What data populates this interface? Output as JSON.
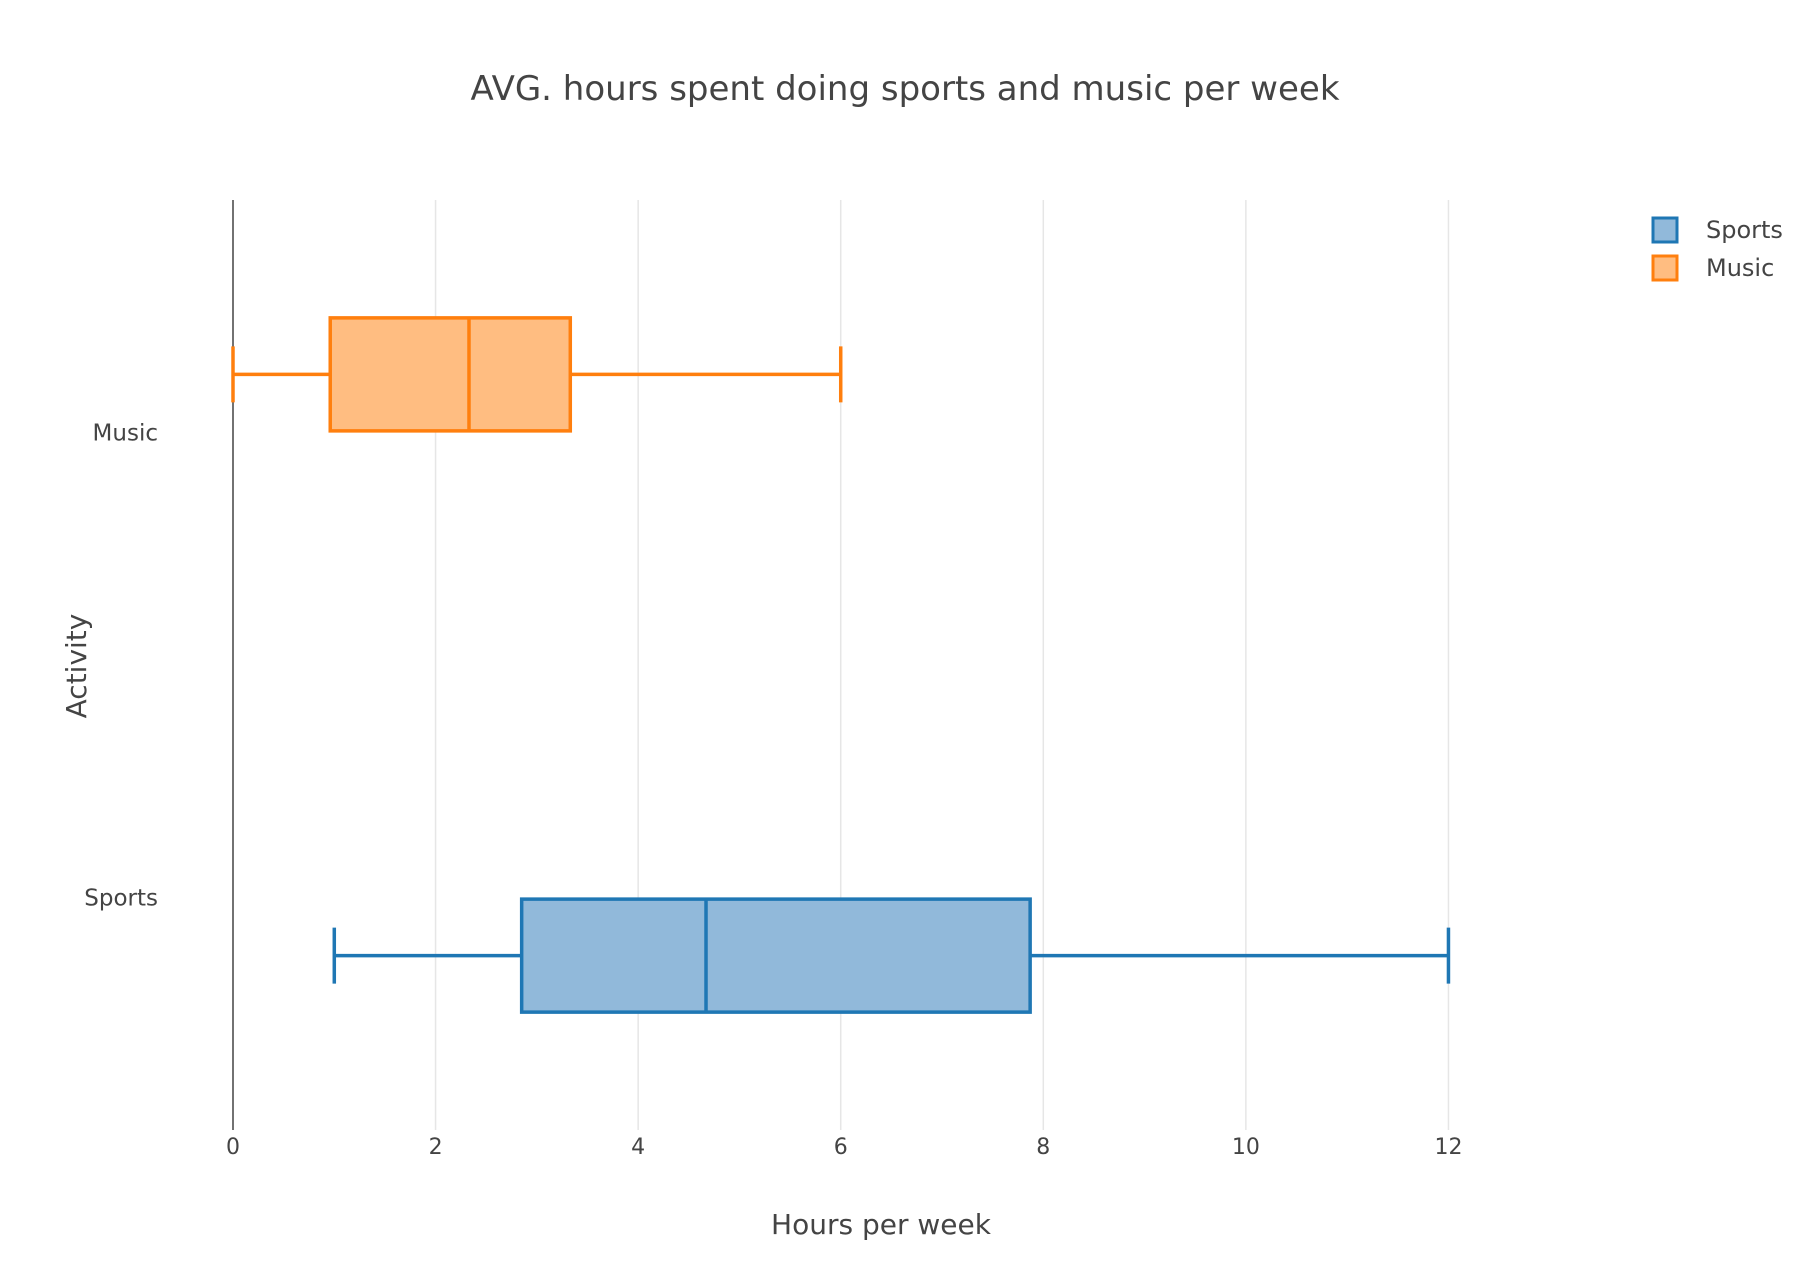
{
  "chart_data": {
    "type": "box",
    "orientation": "horizontal",
    "title": "AVG. hours spent doing sports and music per week",
    "xlabel": "Hours per week",
    "ylabel": "Activity",
    "xlim": [
      0,
      13.2
    ],
    "xticks": [
      0,
      2,
      4,
      6,
      8,
      10,
      12
    ],
    "categories": [
      "Sports",
      "Music"
    ],
    "grid": true,
    "legend_position": "top-right",
    "series": [
      {
        "name": "Sports",
        "category": "Sports",
        "min": 1,
        "q1": 2.85,
        "median": 4.67,
        "q3": 7.87,
        "max": 12,
        "stroke": "#1f77b4",
        "fill": "#91b9da"
      },
      {
        "name": "Music",
        "category": "Music",
        "min": 0,
        "q1": 0.96,
        "median": 2.33,
        "q3": 3.33,
        "max": 6,
        "stroke": "#ff7f0e",
        "fill": "#ffbd81"
      }
    ]
  }
}
